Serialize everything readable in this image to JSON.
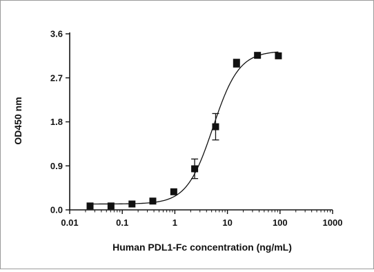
{
  "chart_data": {
    "type": "scatter",
    "title": "",
    "xlabel": "Human PDL1-Fc concentration (ng/mL)",
    "ylabel": "OD450 nm",
    "xscale": "log",
    "xlim": [
      0.01,
      1000
    ],
    "ylim": [
      0.0,
      3.6
    ],
    "x_ticks": [
      0.01,
      0.1,
      1,
      10,
      100,
      1000
    ],
    "x_tick_labels": [
      "0.01",
      "0.1",
      "1",
      "10",
      "100",
      "1000"
    ],
    "y_ticks": [
      0.0,
      0.9,
      1.8,
      2.7,
      3.6
    ],
    "y_tick_labels": [
      "0.0",
      "0.9",
      "1.8",
      "2.7",
      "3.6"
    ],
    "grid": false,
    "legend": "none",
    "marker": "square",
    "color": "#111111",
    "points": [
      {
        "x": 0.0244,
        "y": 0.08,
        "err": 0.0
      },
      {
        "x": 0.061,
        "y": 0.08,
        "err": 0.0
      },
      {
        "x": 0.153,
        "y": 0.12,
        "err": 0.0
      },
      {
        "x": 0.381,
        "y": 0.18,
        "err": 0.0
      },
      {
        "x": 0.954,
        "y": 0.37,
        "err": 0.0
      },
      {
        "x": 2.38,
        "y": 0.84,
        "err": 0.2
      },
      {
        "x": 5.96,
        "y": 1.7,
        "err": 0.27
      },
      {
        "x": 14.9,
        "y": 3.0,
        "err": 0.08
      },
      {
        "x": 37.3,
        "y": 3.16,
        "err": 0.0
      },
      {
        "x": 93.1,
        "y": 3.15,
        "err": 0.0
      }
    ],
    "fit": {
      "model": "4PL",
      "bottom": 0.12,
      "top": 3.25,
      "ec50": 5.3,
      "hill": 1.75
    }
  }
}
